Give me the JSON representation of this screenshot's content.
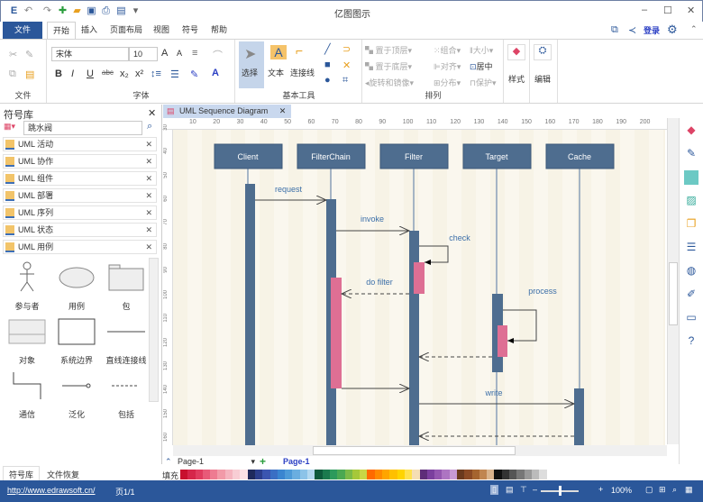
{
  "app": {
    "title": "亿图图示"
  },
  "quick_access": [
    "app-logo-icon",
    "undo-icon",
    "redo-icon",
    "new-icon",
    "open-icon",
    "save-icon",
    "print-icon",
    "export-icon",
    "customize-icon"
  ],
  "menu": {
    "file": "文件",
    "tabs": [
      "开始",
      "插入",
      "页面布局",
      "视图",
      "符号",
      "帮助"
    ],
    "login": "登录"
  },
  "ribbon": {
    "groups": [
      "文件",
      "字体",
      "基本工具",
      "排列",
      "样式",
      "编辑"
    ],
    "font_name": "宋体",
    "font_size": "10",
    "tools": {
      "select": "选择",
      "text": "文本",
      "connector": "连接线"
    },
    "arrange": [
      "置于顶层",
      "置于底层",
      "旋转和镜像",
      "组合",
      "对齐",
      "分布",
      "大小",
      "居中",
      "保护"
    ],
    "style": "样式",
    "edit": "编辑"
  },
  "library": {
    "title": "符号库",
    "search_value": "跳水阀",
    "items": [
      "UML 活动",
      "UML 协作",
      "UML 组件",
      "UML 部署",
      "UML 序列",
      "UML 状态",
      "UML 用例"
    ],
    "shapes": [
      "参与者",
      "用例",
      "包",
      "对象",
      "系统边界",
      "直线连接线",
      "通信",
      "泛化",
      "包括"
    ],
    "bottom_tabs": [
      "符号库",
      "文件恢复"
    ]
  },
  "document": {
    "tab": "UML Sequence Diagram",
    "ruler_top": [
      "10",
      "20",
      "30",
      "40",
      "50",
      "60",
      "70",
      "80",
      "90",
      "100",
      "110",
      "120",
      "130",
      "140",
      "150",
      "160",
      "170",
      "180",
      "190",
      "200"
    ],
    "ruler_left": [
      "30",
      "40",
      "50",
      "60",
      "70",
      "80",
      "90",
      "100",
      "110",
      "120",
      "130",
      "140",
      "150",
      "160"
    ]
  },
  "diagram": {
    "lifelines": [
      "Client",
      "FilterChain",
      "Filter",
      "Target",
      "Cache"
    ],
    "messages": [
      "request",
      "invoke",
      "check",
      "do filter",
      "process",
      "write"
    ],
    "colors": {
      "lifeline": "#4e6d8f",
      "activation_focus": "#de6f94",
      "label": "#3c6fa8"
    }
  },
  "pages": {
    "selector": "Page-1",
    "active": "Page-1",
    "fill_label": "填充"
  },
  "palette": [
    "#c8102e",
    "#d6264a",
    "#e03c5f",
    "#e85a78",
    "#ee7b91",
    "#f29aa8",
    "#f5b4bf",
    "#f8cdd4",
    "#fbe2e6",
    "#1f2a5c",
    "#2c3e8c",
    "#3b55b0",
    "#3a6fc4",
    "#3a85d0",
    "#4d9ad8",
    "#6aaee0",
    "#8cc3e8",
    "#b3d8f0",
    "#0e5a3c",
    "#1b7a4e",
    "#2c9a5c",
    "#4aa852",
    "#7bba48",
    "#a6c83a",
    "#c9d646",
    "#ff6a00",
    "#ff8a00",
    "#ffa500",
    "#ffc000",
    "#ffd400",
    "#ffe14d",
    "#f5deb3",
    "#5e2d79",
    "#7b3f9e",
    "#9456b0",
    "#ad74c2",
    "#c89ad6",
    "#6b3a1e",
    "#8b4a25",
    "#a5642f",
    "#c08550",
    "#d9b38c",
    "#111111",
    "#333333",
    "#555555",
    "#777777",
    "#999999",
    "#bbbbbb",
    "#dddddd"
  ],
  "status": {
    "url": "http://www.edrawsoft.cn/",
    "page": "页1/1",
    "zoom": "100%",
    "zoom_level": 0.5
  }
}
